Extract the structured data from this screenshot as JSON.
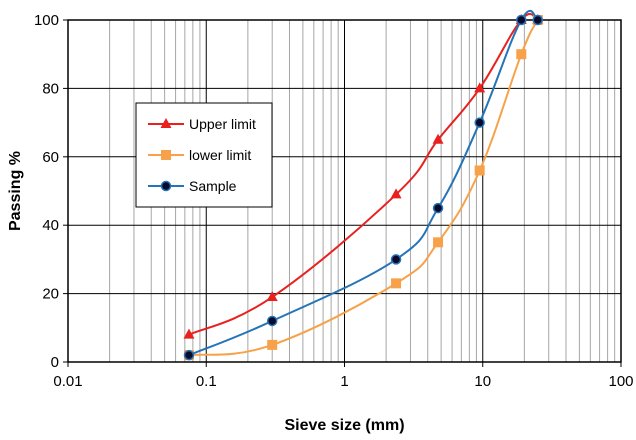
{
  "chart_data": {
    "type": "line",
    "xlabel": "Sieve size (mm)",
    "ylabel": "Passing %",
    "xscale": "log",
    "xlim": [
      0.01,
      100
    ],
    "ylim": [
      0,
      100
    ],
    "x_ticks": [
      "0.01",
      "0.1",
      "1",
      "10",
      "100"
    ],
    "y_ticks": [
      "0",
      "20",
      "40",
      "60",
      "80",
      "100"
    ],
    "grid": true,
    "legend_position": "left",
    "series": [
      {
        "name": "Upper limit",
        "color": "#e8211f",
        "marker": "triangle",
        "x": [
          0.075,
          0.3,
          2.36,
          4.75,
          9.5,
          19,
          25
        ],
        "y": [
          8,
          19,
          49,
          65,
          80,
          100,
          100
        ]
      },
      {
        "name": "lower limit",
        "color": "#f7a24a",
        "marker": "square",
        "x": [
          0.075,
          0.3,
          2.36,
          4.75,
          9.5,
          19,
          25
        ],
        "y": [
          2,
          5,
          23,
          35,
          56,
          90,
          100
        ]
      },
      {
        "name": "Sample",
        "color": "#2574b8",
        "marker": "circle",
        "x": [
          0.075,
          0.3,
          2.36,
          4.75,
          9.5,
          19,
          25
        ],
        "y": [
          2,
          12,
          30,
          45,
          70,
          100,
          100
        ]
      }
    ]
  }
}
